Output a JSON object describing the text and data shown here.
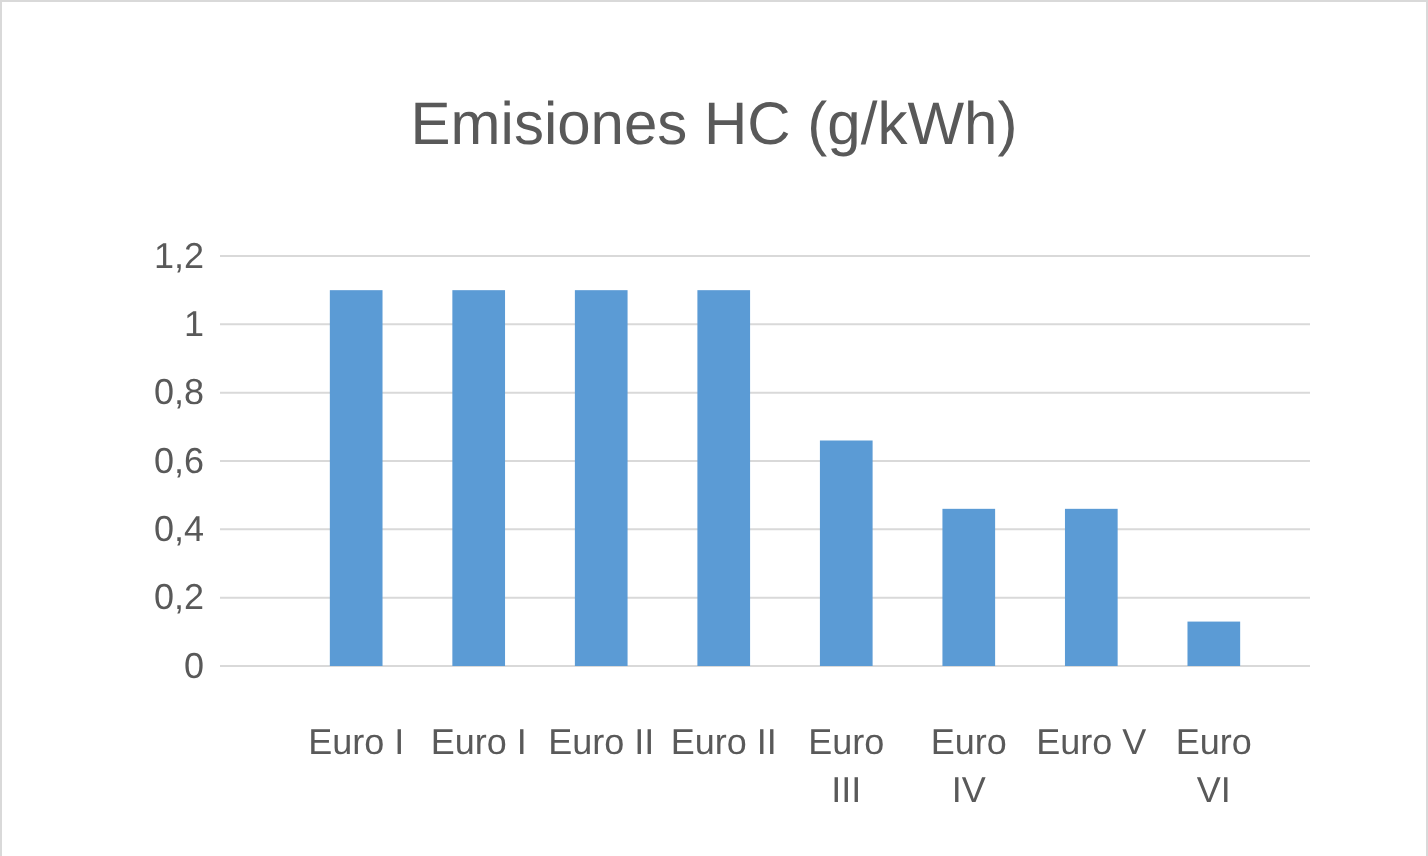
{
  "chart_data": {
    "type": "bar",
    "title": "Emisiones HC (g/kWh)",
    "categories": [
      "Euro I",
      "Euro I",
      "Euro II",
      "Euro II",
      "Euro III",
      "Euro IV",
      "Euro V",
      "Euro VI"
    ],
    "values": [
      1.1,
      1.1,
      1.1,
      1.1,
      0.66,
      0.46,
      0.46,
      0.13
    ],
    "color": "#5b9bd5",
    "ylim": [
      0,
      1.2
    ],
    "yticks": [
      {
        "value": 0,
        "label": "0"
      },
      {
        "value": 0.2,
        "label": "0,2"
      },
      {
        "value": 0.4,
        "label": "0,4"
      },
      {
        "value": 0.6,
        "label": "0,6"
      },
      {
        "value": 0.8,
        "label": "0,8"
      },
      {
        "value": 1,
        "label": "1"
      },
      {
        "value": 1.2,
        "label": "1,2"
      }
    ],
    "grid": "y"
  }
}
